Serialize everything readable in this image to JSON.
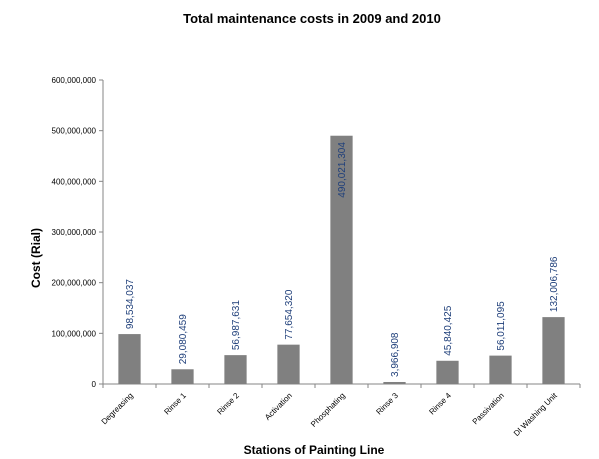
{
  "chart_data": {
    "type": "bar",
    "title": "Total  maintenance costs in 2009 and 2010",
    "xlabel": "Stations of Painting Line",
    "ylabel": "Cost (Rial)",
    "ylim": [
      0,
      600000000
    ],
    "yticks": [
      0,
      100000000,
      200000000,
      300000000,
      400000000,
      500000000,
      600000000
    ],
    "ytick_labels": [
      "0",
      "100,000,000",
      "200,000,000",
      "300,000,000",
      "400,000,000",
      "500,000,000",
      "600,000,000"
    ],
    "categories": [
      "Degreasing",
      "Rinse 1",
      "Rinse 2",
      "Activation",
      "Phosphating",
      "Rinse 3",
      "Rinse 4",
      "Passivation",
      "DI Washing Unit"
    ],
    "values": [
      98534037,
      29080459,
      56987631,
      77654320,
      490021304,
      3966908,
      45840425,
      56011095,
      132006786
    ],
    "data_labels": [
      "98,534,037",
      "29,080,459",
      "56,987,631",
      "77,654,320",
      "490,021,304",
      "3,966,908",
      "45,840,425",
      "56,011,095",
      "132,006,786"
    ],
    "grid": false,
    "legend": "none",
    "colors": {
      "bar": "#808080",
      "data_label": "#1f3f7a",
      "axis": "#868686"
    }
  }
}
